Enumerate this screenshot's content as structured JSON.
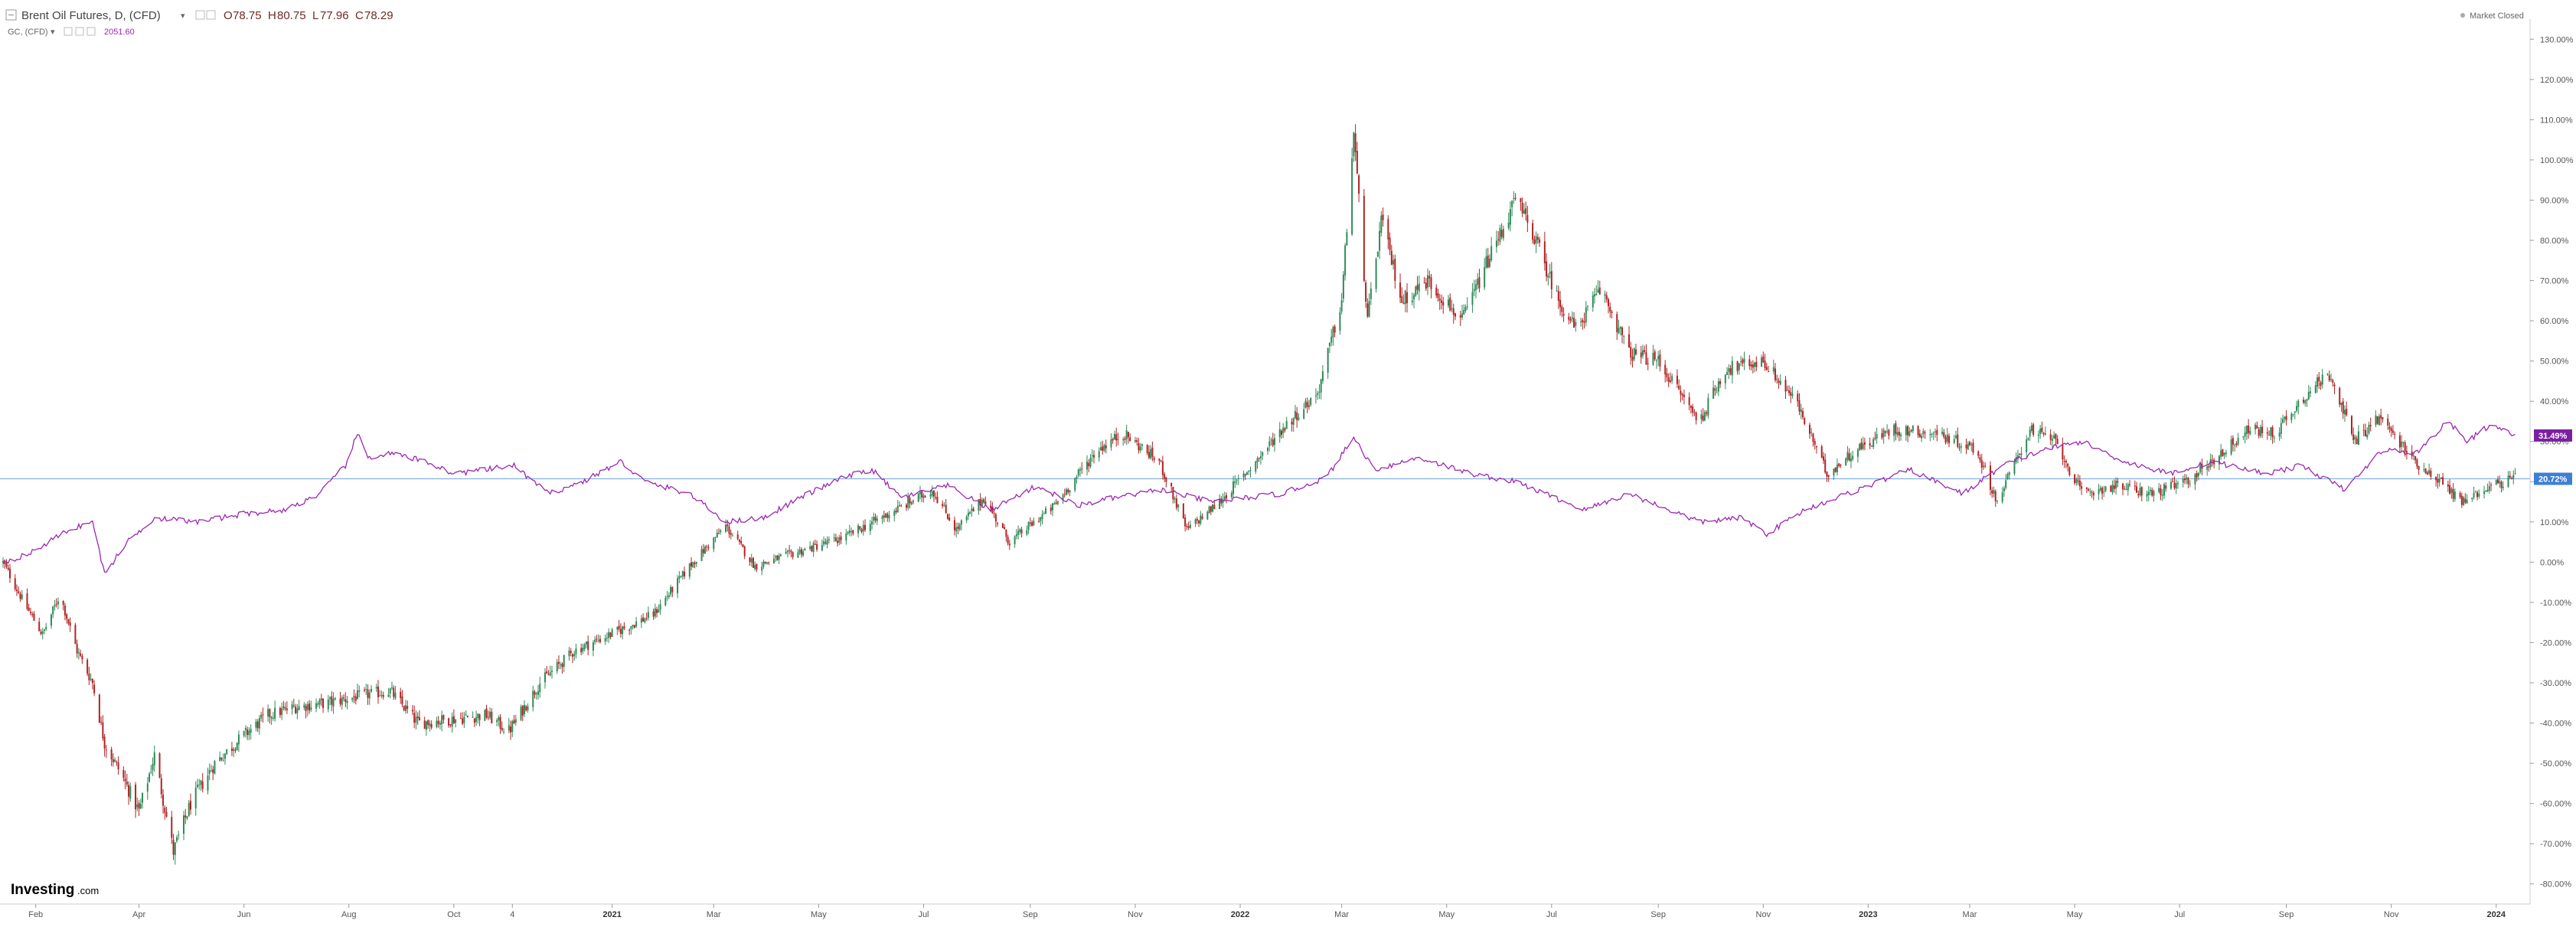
{
  "header": {
    "collapse_icon": "minus-square-icon",
    "main_symbol": "Brent Oil Futures, D, (CFD)",
    "main_arrow": "▾",
    "ohlc": {
      "open_label": "O",
      "open": "78.75",
      "high_label": "H",
      "high": "80.75",
      "low_label": "L",
      "low": "77.96",
      "close_label": "C",
      "close": "78.29"
    },
    "comp_symbol": "GC, (CFD)",
    "comp_arrow": "▾",
    "comp_value": "2051.60",
    "market_status": "Market Closed"
  },
  "logo": {
    "main": "Investing",
    "suffix": ".com"
  },
  "colors": {
    "up": "#2e8b57",
    "down": "#b22222",
    "gold_line": "#9c27b0",
    "ref_line": "#6fa8dc",
    "badge_gold": "#7b1fa2",
    "badge_ref": "#3d7fd6"
  },
  "badges": {
    "gold": "31.49%",
    "ref": "20.72%"
  },
  "chart_data": {
    "type": "line",
    "y_axis_unit": "percent change",
    "ylim": [
      -85,
      135
    ],
    "y_ticks": [
      "130.00%",
      "120.00%",
      "110.00%",
      "100.00%",
      "90.00%",
      "80.00%",
      "70.00%",
      "60.00%",
      "50.00%",
      "40.00%",
      "30.00%",
      "20.00%",
      "10.00%",
      "0.00%",
      "-10.00%",
      "-20.00%",
      "-30.00%",
      "-40.00%",
      "-50.00%",
      "-60.00%",
      "-70.00%",
      "-80.00%"
    ],
    "x_tick_labels": [
      {
        "label": "Feb",
        "date": "2020-02-01",
        "bold": false
      },
      {
        "label": "Apr",
        "date": "2020-04-01",
        "bold": false
      },
      {
        "label": "Jun",
        "date": "2020-06-01",
        "bold": false
      },
      {
        "label": "Aug",
        "date": "2020-08-01",
        "bold": false
      },
      {
        "label": "Oct",
        "date": "2020-10-01",
        "bold": false
      },
      {
        "label": "4",
        "date": "2020-11-04",
        "bold": false
      },
      {
        "label": "2021",
        "date": "2021-01-01",
        "bold": true
      },
      {
        "label": "Mar",
        "date": "2021-03-01",
        "bold": false
      },
      {
        "label": "May",
        "date": "2021-05-01",
        "bold": false
      },
      {
        "label": "Jul",
        "date": "2021-07-01",
        "bold": false
      },
      {
        "label": "Sep",
        "date": "2021-09-01",
        "bold": false
      },
      {
        "label": "Nov",
        "date": "2021-11-01",
        "bold": false
      },
      {
        "label": "2022",
        "date": "2022-01-01",
        "bold": true
      },
      {
        "label": "Mar",
        "date": "2022-03-01",
        "bold": false
      },
      {
        "label": "May",
        "date": "2022-05-01",
        "bold": false
      },
      {
        "label": "Jul",
        "date": "2022-07-01",
        "bold": false
      },
      {
        "label": "Sep",
        "date": "2022-09-01",
        "bold": false
      },
      {
        "label": "Nov",
        "date": "2022-11-01",
        "bold": false
      },
      {
        "label": "2023",
        "date": "2023-01-01",
        "bold": true
      },
      {
        "label": "Mar",
        "date": "2023-03-01",
        "bold": false
      },
      {
        "label": "May",
        "date": "2023-05-01",
        "bold": false
      },
      {
        "label": "Jul",
        "date": "2023-07-01",
        "bold": false
      },
      {
        "label": "Sep",
        "date": "2023-09-01",
        "bold": false
      },
      {
        "label": "Nov",
        "date": "2023-11-01",
        "bold": false
      },
      {
        "label": "2024",
        "date": "2024-01-01",
        "bold": true
      }
    ],
    "reference_level": 20.72,
    "series": [
      {
        "name": "Brent Oil Futures, D, (CFD)",
        "style": "candlestick",
        "points": [
          {
            "date": "2020-01-13",
            "y": 0
          },
          {
            "date": "2020-01-25",
            "y": -10
          },
          {
            "date": "2020-02-05",
            "y": -18
          },
          {
            "date": "2020-02-15",
            "y": -8
          },
          {
            "date": "2020-02-25",
            "y": -22
          },
          {
            "date": "2020-03-05",
            "y": -30
          },
          {
            "date": "2020-03-12",
            "y": -45
          },
          {
            "date": "2020-03-22",
            "y": -53
          },
          {
            "date": "2020-04-01",
            "y": -62
          },
          {
            "date": "2020-04-10",
            "y": -48
          },
          {
            "date": "2020-04-21",
            "y": -72
          },
          {
            "date": "2020-05-01",
            "y": -60
          },
          {
            "date": "2020-05-15",
            "y": -50
          },
          {
            "date": "2020-06-01",
            "y": -43
          },
          {
            "date": "2020-06-15",
            "y": -38
          },
          {
            "date": "2020-07-01",
            "y": -36
          },
          {
            "date": "2020-07-20",
            "y": -35
          },
          {
            "date": "2020-08-10",
            "y": -33
          },
          {
            "date": "2020-08-25",
            "y": -32
          },
          {
            "date": "2020-09-10",
            "y": -40
          },
          {
            "date": "2020-10-01",
            "y": -39
          },
          {
            "date": "2020-10-20",
            "y": -38
          },
          {
            "date": "2020-11-02",
            "y": -42
          },
          {
            "date": "2020-11-20",
            "y": -30
          },
          {
            "date": "2020-12-10",
            "y": -22
          },
          {
            "date": "2021-01-05",
            "y": -17
          },
          {
            "date": "2021-01-25",
            "y": -13
          },
          {
            "date": "2021-02-15",
            "y": -1
          },
          {
            "date": "2021-03-08",
            "y": 9
          },
          {
            "date": "2021-03-25",
            "y": -1
          },
          {
            "date": "2021-04-15",
            "y": 2
          },
          {
            "date": "2021-05-15",
            "y": 6
          },
          {
            "date": "2021-06-15",
            "y": 13
          },
          {
            "date": "2021-07-06",
            "y": 18
          },
          {
            "date": "2021-07-20",
            "y": 8
          },
          {
            "date": "2021-08-05",
            "y": 16
          },
          {
            "date": "2021-08-20",
            "y": 5
          },
          {
            "date": "2021-09-15",
            "y": 14
          },
          {
            "date": "2021-10-10",
            "y": 28
          },
          {
            "date": "2021-10-25",
            "y": 32
          },
          {
            "date": "2021-11-15",
            "y": 25
          },
          {
            "date": "2021-12-01",
            "y": 8
          },
          {
            "date": "2021-12-20",
            "y": 15
          },
          {
            "date": "2022-01-10",
            "y": 25
          },
          {
            "date": "2022-01-25",
            "y": 33
          },
          {
            "date": "2022-02-15",
            "y": 42
          },
          {
            "date": "2022-03-01",
            "y": 65
          },
          {
            "date": "2022-03-08",
            "y": 107
          },
          {
            "date": "2022-03-16",
            "y": 60
          },
          {
            "date": "2022-03-24",
            "y": 85
          },
          {
            "date": "2022-04-05",
            "y": 65
          },
          {
            "date": "2022-04-20",
            "y": 70
          },
          {
            "date": "2022-05-10",
            "y": 60
          },
          {
            "date": "2022-05-25",
            "y": 75
          },
          {
            "date": "2022-06-10",
            "y": 90
          },
          {
            "date": "2022-06-20",
            "y": 82
          },
          {
            "date": "2022-07-05",
            "y": 65
          },
          {
            "date": "2022-07-15",
            "y": 58
          },
          {
            "date": "2022-07-30",
            "y": 68
          },
          {
            "date": "2022-08-15",
            "y": 52
          },
          {
            "date": "2022-09-01",
            "y": 50
          },
          {
            "date": "2022-09-25",
            "y": 35
          },
          {
            "date": "2022-10-10",
            "y": 48
          },
          {
            "date": "2022-11-01",
            "y": 50
          },
          {
            "date": "2022-11-20",
            "y": 40
          },
          {
            "date": "2022-12-08",
            "y": 22
          },
          {
            "date": "2022-12-25",
            "y": 28
          },
          {
            "date": "2023-01-15",
            "y": 33
          },
          {
            "date": "2023-02-10",
            "y": 32
          },
          {
            "date": "2023-03-05",
            "y": 28
          },
          {
            "date": "2023-03-17",
            "y": 15
          },
          {
            "date": "2023-04-05",
            "y": 33
          },
          {
            "date": "2023-04-20",
            "y": 30
          },
          {
            "date": "2023-05-05",
            "y": 17
          },
          {
            "date": "2023-05-25",
            "y": 19
          },
          {
            "date": "2023-06-15",
            "y": 17
          },
          {
            "date": "2023-07-05",
            "y": 20
          },
          {
            "date": "2023-07-25",
            "y": 27
          },
          {
            "date": "2023-08-10",
            "y": 33
          },
          {
            "date": "2023-08-25",
            "y": 32
          },
          {
            "date": "2023-09-15",
            "y": 43
          },
          {
            "date": "2023-09-27",
            "y": 47
          },
          {
            "date": "2023-10-10",
            "y": 30
          },
          {
            "date": "2023-10-25",
            "y": 36
          },
          {
            "date": "2023-11-15",
            "y": 25
          },
          {
            "date": "2023-11-30",
            "y": 20
          },
          {
            "date": "2023-12-12",
            "y": 15
          },
          {
            "date": "2023-12-28",
            "y": 19
          },
          {
            "date": "2024-01-12",
            "y": 20.72
          }
        ]
      },
      {
        "name": "GC, (CFD)",
        "style": "line",
        "points": [
          {
            "date": "2020-01-13",
            "y": 0
          },
          {
            "date": "2020-01-28",
            "y": 2
          },
          {
            "date": "2020-02-20",
            "y": 8
          },
          {
            "date": "2020-03-05",
            "y": 10
          },
          {
            "date": "2020-03-12",
            "y": -3
          },
          {
            "date": "2020-03-25",
            "y": 5
          },
          {
            "date": "2020-04-10",
            "y": 11
          },
          {
            "date": "2020-05-05",
            "y": 10
          },
          {
            "date": "2020-06-01",
            "y": 12
          },
          {
            "date": "2020-06-25",
            "y": 13
          },
          {
            "date": "2020-07-15",
            "y": 17
          },
          {
            "date": "2020-07-30",
            "y": 24
          },
          {
            "date": "2020-08-06",
            "y": 32
          },
          {
            "date": "2020-08-12",
            "y": 26
          },
          {
            "date": "2020-08-25",
            "y": 27
          },
          {
            "date": "2020-09-15",
            "y": 25
          },
          {
            "date": "2020-10-01",
            "y": 22
          },
          {
            "date": "2020-10-20",
            "y": 23
          },
          {
            "date": "2020-11-05",
            "y": 24
          },
          {
            "date": "2020-11-25",
            "y": 17
          },
          {
            "date": "2020-12-15",
            "y": 20
          },
          {
            "date": "2021-01-06",
            "y": 25
          },
          {
            "date": "2021-01-20",
            "y": 20
          },
          {
            "date": "2021-02-15",
            "y": 17
          },
          {
            "date": "2021-03-08",
            "y": 10
          },
          {
            "date": "2021-03-30",
            "y": 11
          },
          {
            "date": "2021-04-20",
            "y": 16
          },
          {
            "date": "2021-05-15",
            "y": 21
          },
          {
            "date": "2021-06-01",
            "y": 23
          },
          {
            "date": "2021-06-18",
            "y": 16
          },
          {
            "date": "2021-07-15",
            "y": 19
          },
          {
            "date": "2021-08-09",
            "y": 13
          },
          {
            "date": "2021-09-05",
            "y": 19
          },
          {
            "date": "2021-09-28",
            "y": 14
          },
          {
            "date": "2021-10-20",
            "y": 16
          },
          {
            "date": "2021-11-16",
            "y": 18
          },
          {
            "date": "2021-12-15",
            "y": 15
          },
          {
            "date": "2022-01-25",
            "y": 17
          },
          {
            "date": "2022-02-20",
            "y": 21
          },
          {
            "date": "2022-03-08",
            "y": 31
          },
          {
            "date": "2022-03-20",
            "y": 23
          },
          {
            "date": "2022-04-15",
            "y": 26
          },
          {
            "date": "2022-05-15",
            "y": 22
          },
          {
            "date": "2022-06-10",
            "y": 20
          },
          {
            "date": "2022-07-20",
            "y": 13
          },
          {
            "date": "2022-08-15",
            "y": 17
          },
          {
            "date": "2022-09-25",
            "y": 10
          },
          {
            "date": "2022-10-20",
            "y": 11
          },
          {
            "date": "2022-11-03",
            "y": 7
          },
          {
            "date": "2022-11-25",
            "y": 13
          },
          {
            "date": "2022-12-20",
            "y": 17
          },
          {
            "date": "2023-01-25",
            "y": 23
          },
          {
            "date": "2023-02-25",
            "y": 17
          },
          {
            "date": "2023-03-20",
            "y": 24
          },
          {
            "date": "2023-04-13",
            "y": 28
          },
          {
            "date": "2023-05-05",
            "y": 30
          },
          {
            "date": "2023-05-30",
            "y": 25
          },
          {
            "date": "2023-06-25",
            "y": 22
          },
          {
            "date": "2023-07-20",
            "y": 25
          },
          {
            "date": "2023-08-20",
            "y": 22
          },
          {
            "date": "2023-09-10",
            "y": 24
          },
          {
            "date": "2023-10-05",
            "y": 18
          },
          {
            "date": "2023-10-27",
            "y": 28
          },
          {
            "date": "2023-11-15",
            "y": 27
          },
          {
            "date": "2023-12-04",
            "y": 35
          },
          {
            "date": "2023-12-15",
            "y": 30
          },
          {
            "date": "2023-12-28",
            "y": 34
          },
          {
            "date": "2024-01-12",
            "y": 31.49
          }
        ]
      }
    ]
  }
}
